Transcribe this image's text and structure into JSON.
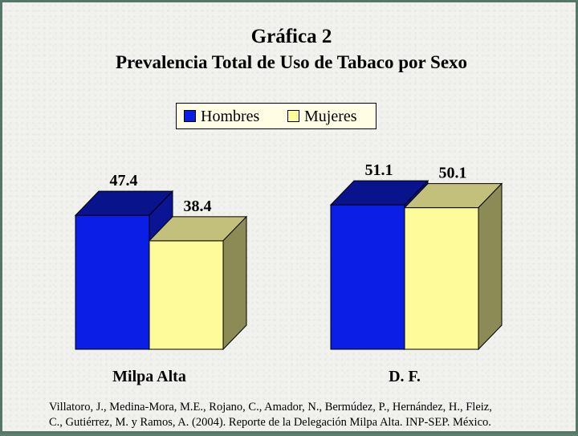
{
  "chart_data": {
    "type": "bar",
    "title": "Gráfica 2",
    "subtitle": "Prevalencia Total de Uso de Tabaco por Sexo",
    "categories": [
      "Milpa Alta",
      "D. F."
    ],
    "series": [
      {
        "name": "Hombres",
        "values": [
          47.4,
          51.1
        ],
        "color": "#0a1ee6"
      },
      {
        "name": "Mujeres",
        "values": [
          38.4,
          50.1
        ],
        "color": "#fdfb9a"
      }
    ],
    "data_labels": [
      [
        "47.4",
        "51.1"
      ],
      [
        "38.4",
        "50.1"
      ]
    ],
    "legend_position": "top-center",
    "grid": false,
    "three_d": true
  },
  "citation": {
    "line1": "Villatoro, J., Medina-Mora, M.E., Rojano, C., Amador, N., Bermúdez, P., Hernández, H., Fleiz,",
    "line2": "C., Gutiérrez, M. y Ramos, A. (2004). Reporte de la Delegación Milpa Alta. INP-SEP. México."
  }
}
